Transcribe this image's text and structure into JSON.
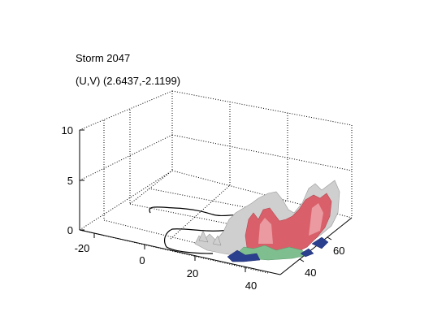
{
  "chart_data": {
    "type": "3d-surface",
    "title": "Storm 2047",
    "subtitle": "(U,V) (2.6437,-2.1199)",
    "xlabel": "",
    "ylabel": "",
    "zlabel": "",
    "x_ticks": [
      "-20",
      "0",
      "20",
      "40"
    ],
    "y_ticks": [
      "40",
      "60"
    ],
    "z_ticks": [
      "0",
      "5",
      "10"
    ],
    "zlim": [
      0,
      10
    ],
    "grid": true,
    "colors": {
      "isosurface_high": "#d9606a",
      "isosurface_mid": "#c8c8c8",
      "isosurface_low_green": "#7fbf8f",
      "isosurface_low_blue": "#2b3f8f",
      "outline": "#000000"
    }
  }
}
